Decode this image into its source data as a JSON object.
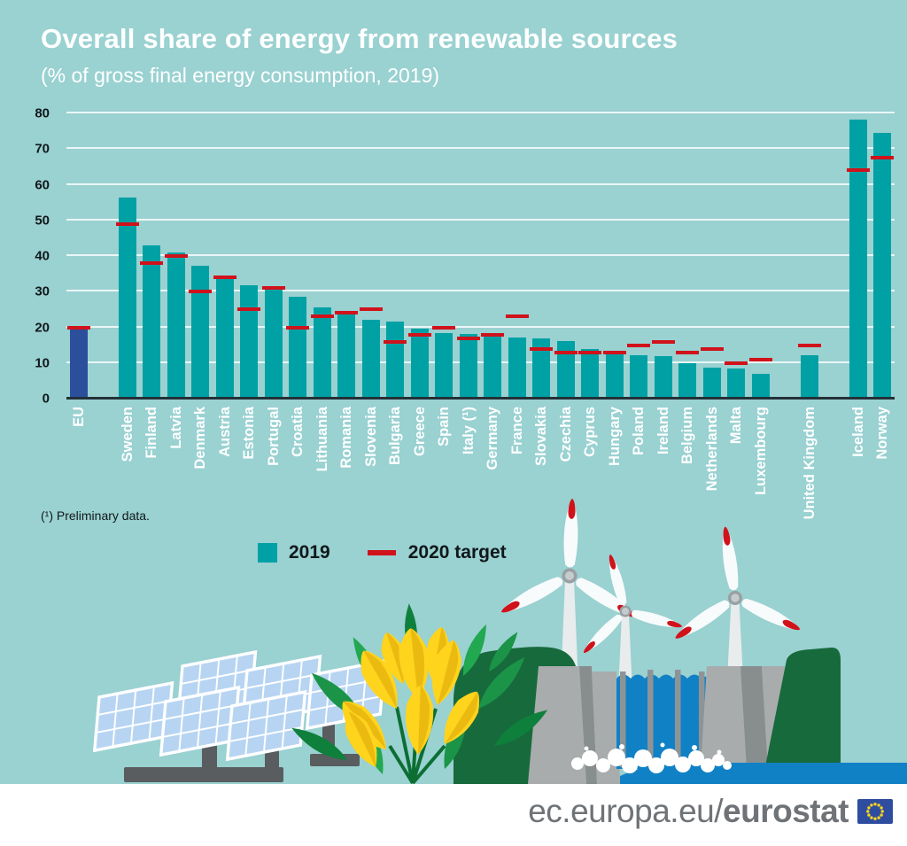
{
  "header": {
    "title": "Overall share of energy from renewable sources",
    "subtitle": "(% of gross final energy consumption, 2019)"
  },
  "chart_data": {
    "type": "bar",
    "title": "Overall share of energy from renewable sources",
    "subtitle": "(% of gross final energy consumption, 2019)",
    "xlabel": "",
    "ylabel": "% of gross final energy consumption",
    "ylim": [
      0,
      80
    ],
    "yticks": [
      0,
      10,
      20,
      30,
      40,
      50,
      60,
      70,
      80
    ],
    "grid": true,
    "legend_position": "below-left",
    "categories": [
      "EU",
      "Sweden",
      "Finland",
      "Latvia",
      "Denmark",
      "Austria",
      "Estonia",
      "Portugal",
      "Croatia",
      "Lithuania",
      "Romania",
      "Slovenia",
      "Bulgaria",
      "Greece",
      "Spain",
      "Italy (¹)",
      "Germany",
      "France",
      "Slovakia",
      "Czechia",
      "Cyprus",
      "Hungary",
      "Poland",
      "Ireland",
      "Belgium",
      "Netherlands",
      "Malta",
      "Luxembourg",
      "United Kingdom",
      "Iceland",
      "Norway"
    ],
    "series": [
      {
        "name": "2019",
        "values": [
          19.7,
          56.4,
          43.1,
          41.0,
          37.2,
          33.6,
          31.9,
          30.6,
          28.5,
          25.5,
          24.3,
          22.0,
          21.6,
          19.7,
          18.4,
          18.2,
          17.4,
          17.2,
          16.9,
          16.2,
          13.8,
          12.6,
          12.2,
          12.0,
          9.9,
          8.8,
          8.5,
          7.0,
          12.3,
          78.2,
          74.6
        ]
      },
      {
        "name": "2020 target",
        "values": [
          20,
          49,
          38,
          40,
          30,
          34,
          25,
          31,
          20,
          23,
          24,
          25,
          16,
          18,
          20,
          17,
          18,
          23,
          14,
          13,
          13,
          13,
          15,
          16,
          13,
          14,
          10,
          11,
          15,
          64,
          67.5
        ]
      }
    ],
    "gap_after": [
      "EU",
      "Luxembourg",
      "United Kingdom"
    ],
    "colors": {
      "background": "#9ad1d1",
      "bar_2019": "#00a1a5",
      "bar_eu": "#2b4f9b",
      "target": "#d0121b",
      "gridline": "#ffffff",
      "baseline": "#233138"
    }
  },
  "footnote": "(¹) Preliminary data.",
  "legend": {
    "items": [
      {
        "label": "2019",
        "marker": "square"
      },
      {
        "label": "2020 target",
        "marker": "dash"
      }
    ]
  },
  "illustration": {
    "icons": [
      "wind-turbine-icon",
      "hydro-dam-icon",
      "solar-panel-icon",
      "flowers-icon"
    ]
  },
  "footer": {
    "url_prefix": "ec.europa.eu/",
    "url_bold": "eurostat",
    "flag": "eu-flag"
  }
}
